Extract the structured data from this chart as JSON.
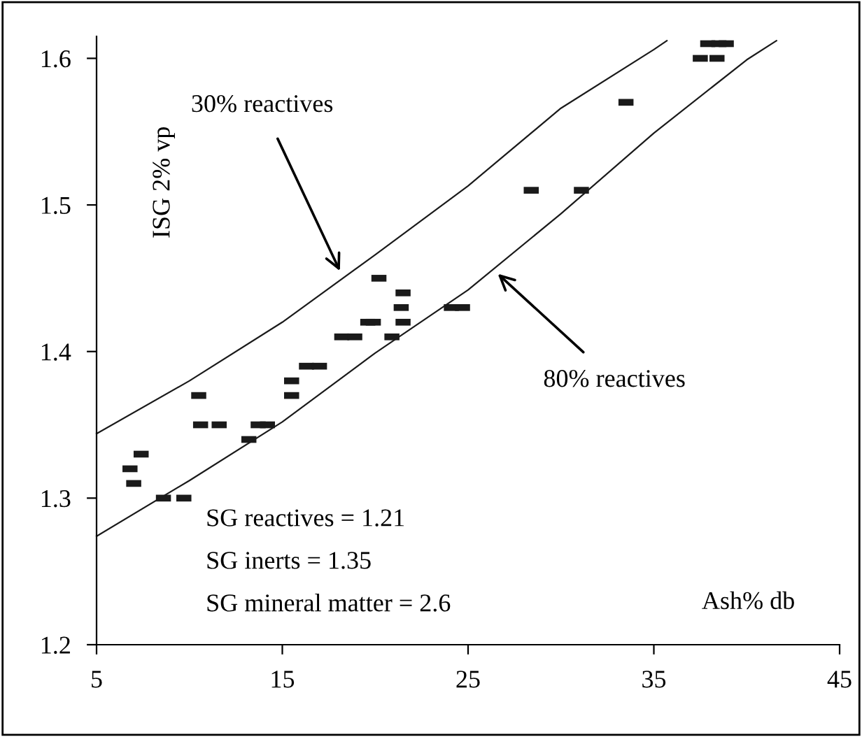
{
  "chart_data": {
    "type": "scatter",
    "xlabel": "Ash% db",
    "ylabel": "ISG 2% vp",
    "xlim": [
      5,
      45
    ],
    "ylim": [
      1.2,
      1.615
    ],
    "xticks": [
      5,
      15,
      25,
      35,
      45
    ],
    "yticks": [
      1.2,
      1.3,
      1.4,
      1.5,
      1.6
    ],
    "grid": false,
    "legend": false,
    "annotations": [
      "SG reactives = 1.21",
      "SG inerts = 1.35",
      "SG mineral matter = 2.6",
      {
        "text": "30% reactives",
        "x": 18.1,
        "y": 1.455
      },
      {
        "text": "80% reactives",
        "x": 26.6,
        "y": 1.453
      }
    ],
    "series": [
      {
        "color": "#1a1a1a",
        "marker": "square",
        "x": [
          6.8,
          7.0,
          7.4,
          8.6,
          9.7,
          10.5,
          10.6,
          11.6,
          13.2,
          13.7,
          14.2,
          15.5,
          15.5,
          16.3,
          17.0,
          18.2,
          18.9,
          19.6,
          19.9,
          20.2,
          20.9,
          21.5,
          21.4,
          21.5,
          24.1,
          24.7,
          28.4,
          31.1,
          33.5,
          37.5,
          38.4,
          37.9,
          38.5,
          38.9
        ],
        "values": [
          1.32,
          1.31,
          1.33,
          1.3,
          1.3,
          1.37,
          1.35,
          1.35,
          1.34,
          1.35,
          1.35,
          1.38,
          1.37,
          1.39,
          1.39,
          1.41,
          1.41,
          1.42,
          1.42,
          1.45,
          1.41,
          1.44,
          1.43,
          1.42,
          1.43,
          1.43,
          1.51,
          1.51,
          1.57,
          1.6,
          1.6,
          1.61,
          1.61,
          1.61
        ]
      },
      {
        "type": "line",
        "color": "#1a1a1a",
        "line_style": "solid",
        "marker": "none",
        "x": [
          5,
          10,
          15,
          20,
          25,
          30,
          35,
          35.7
        ],
        "values": [
          1.344,
          1.38,
          1.42,
          1.466,
          1.513,
          1.566,
          1.606,
          1.612
        ]
      },
      {
        "type": "line",
        "color": "#1a1a1a",
        "line_style": "solid",
        "marker": "none",
        "x": [
          5,
          10,
          15,
          20,
          25,
          30,
          35,
          40,
          41.6
        ],
        "values": [
          1.274,
          1.312,
          1.352,
          1.399,
          1.442,
          1.494,
          1.549,
          1.599,
          1.612
        ]
      }
    ]
  }
}
